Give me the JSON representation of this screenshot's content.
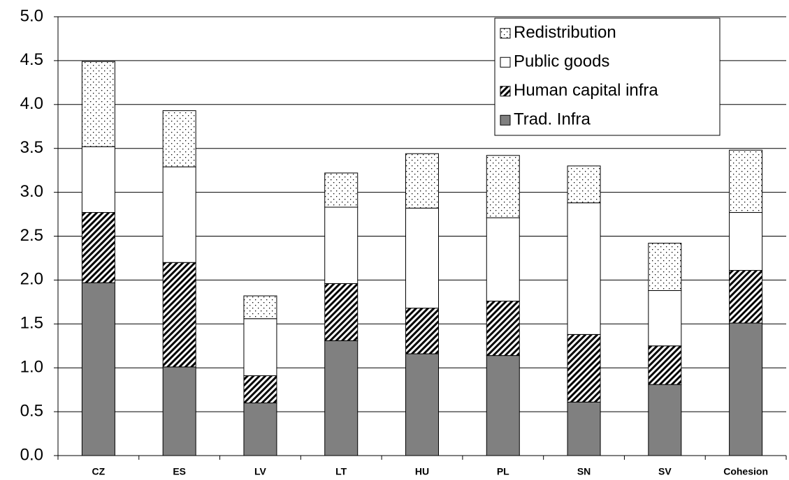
{
  "chart_data": {
    "type": "stacked-bar",
    "categories": [
      "CZ",
      "ES",
      "LV",
      "LT",
      "HU",
      "PL",
      "SN",
      "SV",
      "Cohesion"
    ],
    "series": [
      {
        "name": "Trad. Infra",
        "color": "#808080",
        "pattern": "solid",
        "values": [
          1.97,
          1.01,
          0.6,
          1.31,
          1.16,
          1.14,
          0.61,
          0.81,
          1.51
        ]
      },
      {
        "name": "Human capital infra",
        "color": "#000000",
        "pattern": "hatch",
        "values": [
          0.8,
          1.19,
          0.31,
          0.65,
          0.52,
          0.62,
          0.77,
          0.44,
          0.6
        ]
      },
      {
        "name": "Public goods",
        "color": "#ffffff",
        "pattern": "none",
        "values": [
          0.75,
          1.09,
          0.65,
          0.87,
          1.14,
          0.95,
          1.5,
          0.63,
          0.66
        ]
      },
      {
        "name": "Redistribution",
        "color": "#000000",
        "pattern": "dots",
        "values": [
          0.97,
          0.64,
          0.26,
          0.39,
          0.62,
          0.71,
          0.42,
          0.54,
          0.71
        ]
      }
    ],
    "ylim": [
      0,
      5
    ],
    "yticks": [
      {
        "value": 0,
        "label": "0.0"
      },
      {
        "value": 0.5,
        "label": "0.5"
      },
      {
        "value": 1,
        "label": "1.0"
      },
      {
        "value": 1.5,
        "label": "1.5"
      },
      {
        "value": 2,
        "label": "2.0"
      },
      {
        "value": 2.5,
        "label": "2.5"
      },
      {
        "value": 3,
        "label": "3.0"
      },
      {
        "value": 3.5,
        "label": "3.5"
      },
      {
        "value": 4,
        "label": "4.0"
      },
      {
        "value": 4.5,
        "label": "4.5"
      },
      {
        "value": 5,
        "label": "5.0"
      }
    ],
    "grid": true,
    "legend": "upper right"
  }
}
